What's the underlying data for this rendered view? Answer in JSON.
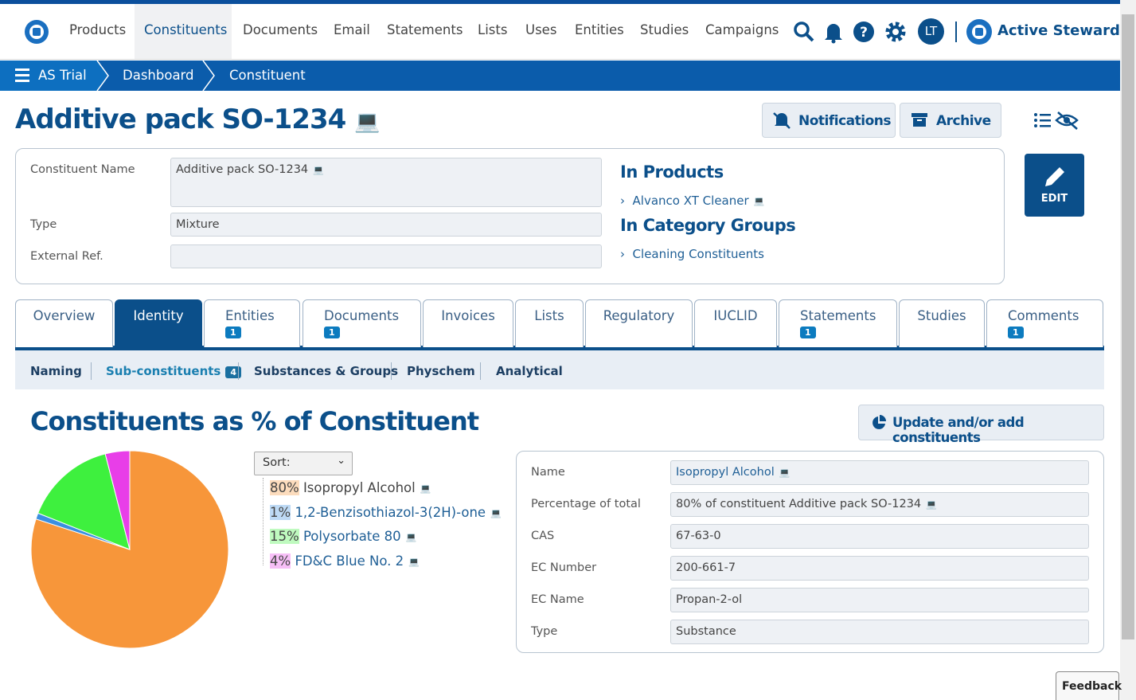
{
  "nav": {
    "items": [
      "Products",
      "Constituents",
      "Documents",
      "Email",
      "Statements",
      "Lists",
      "Uses",
      "Entities",
      "Studies",
      "Campaigns"
    ],
    "user_initials": "LT",
    "brand": "Active Steward"
  },
  "breadcrumb": [
    "AS Trial",
    "Dashboard",
    "Constituent"
  ],
  "header": {
    "title": "Additive pack SO-1234",
    "buttons": [
      "Notifications",
      "Archive"
    ],
    "edit": "EDIT"
  },
  "form": {
    "fields": [
      {
        "label": "Constituent Name",
        "value": "Additive pack SO-1234"
      },
      {
        "label": "Type",
        "value": "Mixture"
      },
      {
        "label": "External Ref."
      }
    ],
    "in_products": {
      "heading": "In Products",
      "items": [
        "Alvanco XT Cleaner"
      ]
    },
    "in_category_groups": {
      "heading": "In Category Groups",
      "items": [
        "Cleaning Constituents"
      ]
    }
  },
  "tabs": [
    {
      "label": "Overview"
    },
    {
      "label": "Identity"
    },
    {
      "label": "Entities",
      "badge": 1
    },
    {
      "label": "Documents",
      "badge": 1
    },
    {
      "label": "Invoices"
    },
    {
      "label": "Lists"
    },
    {
      "label": "Regulatory"
    },
    {
      "label": "IUCLID"
    },
    {
      "label": "Statements",
      "badge": 1
    },
    {
      "label": "Studies"
    },
    {
      "label": "Comments",
      "badge": 1
    }
  ],
  "subtabs": [
    {
      "label": "Naming"
    },
    {
      "label": "Sub-constituents",
      "badge": 4
    },
    {
      "label": "Substances & Groups"
    },
    {
      "label": "Physchem"
    },
    {
      "label": "Analytical"
    }
  ],
  "section": {
    "title": "Constituents as % of Constituent",
    "button": "Update and/or add constituents",
    "sort": "Sort:"
  },
  "chart_data": {
    "type": "pie",
    "categories": [
      "Isopropyl Alcohol",
      "1,2-Benzisothiazol-3(2H)-one",
      "Polysorbate 80",
      "FD&C Blue No. 2"
    ],
    "values": [
      80,
      1,
      15,
      4
    ],
    "value_labels": [
      "80%",
      "1%",
      "15%",
      "4%"
    ],
    "colors": [
      "#f7963a",
      "#3b8fe0",
      "#3ef03e",
      "#e83ee8"
    ]
  },
  "details": [
    {
      "label": "Name",
      "value": "Isopropyl Alcohol"
    },
    {
      "label": "Percentage of total",
      "value": "80% of constituent Additive pack SO-1234"
    },
    {
      "label": "CAS",
      "value": "67-63-0"
    },
    {
      "label": "EC Number",
      "value": "200-661-7"
    },
    {
      "label": "EC Name",
      "value": "Propan-2-ol"
    },
    {
      "label": "Type",
      "value": "Substance"
    }
  ],
  "feedback": "Feedback"
}
